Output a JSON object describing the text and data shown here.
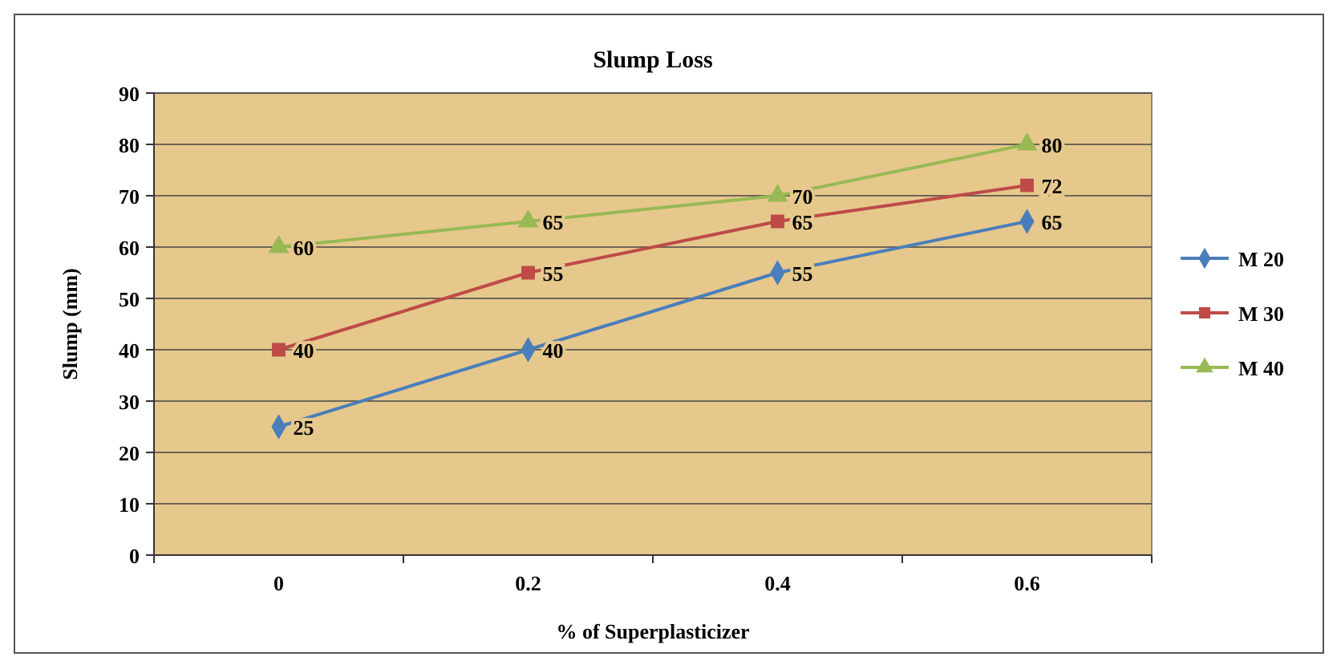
{
  "chart_data": {
    "type": "line",
    "title": "Slump Loss",
    "xlabel": "% of Superplasticizer",
    "ylabel": "Slump (mm)",
    "categories": [
      "0",
      "0.2",
      "0.4",
      "0.6"
    ],
    "series": [
      {
        "name": "M 20",
        "color": "#4a7ebb",
        "values": [
          25,
          40,
          55,
          65
        ],
        "marker": "diamond"
      },
      {
        "name": "M 30",
        "color": "#be4b48",
        "values": [
          40,
          55,
          65,
          72
        ],
        "marker": "square"
      },
      {
        "name": "M 40",
        "color": "#98b954",
        "values": [
          60,
          65,
          70,
          80
        ],
        "marker": "triangle"
      }
    ],
    "ylim": [
      0,
      90
    ],
    "yticks": [
      0,
      10,
      20,
      30,
      40,
      50,
      60,
      70,
      80,
      90
    ],
    "grid": "y",
    "legend": "right",
    "data_labels": true,
    "line_style": "solid"
  }
}
